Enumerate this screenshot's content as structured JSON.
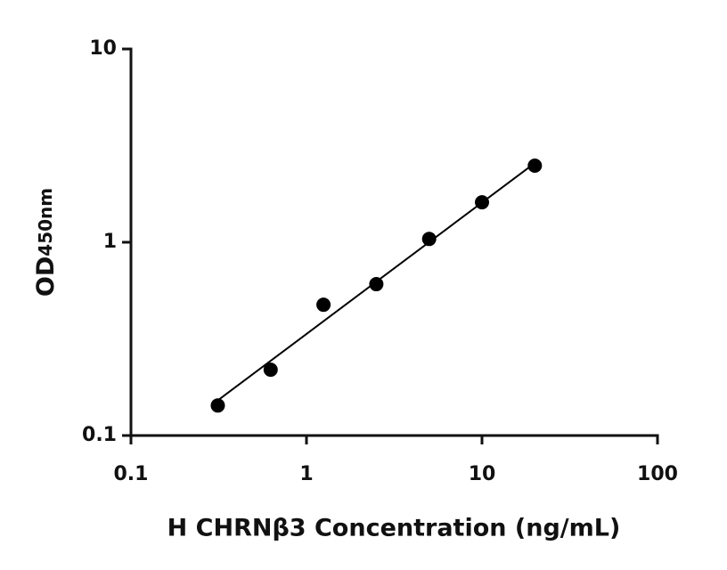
{
  "chart_data": {
    "type": "scatter",
    "xlabel": "H CHRNβ3 Concentration (ng/mL)",
    "ylabel": "OD",
    "ylabel_sub": "450nm",
    "x": [
      0.3125,
      0.625,
      1.25,
      2.5,
      5,
      10,
      20
    ],
    "values": [
      0.143,
      0.219,
      0.475,
      0.607,
      1.04,
      1.61,
      2.49
    ],
    "fit": {
      "x": [
        0.3125,
        20
      ],
      "values": [
        0.152,
        2.57
      ]
    },
    "color": "#000000",
    "xscale": "log",
    "yscale": "log",
    "xlim": [
      0.1,
      100
    ],
    "ylim": [
      0.1,
      10
    ],
    "xticks": [
      0.1,
      1,
      10,
      100
    ],
    "yticks": [
      0.1,
      1,
      10
    ]
  }
}
